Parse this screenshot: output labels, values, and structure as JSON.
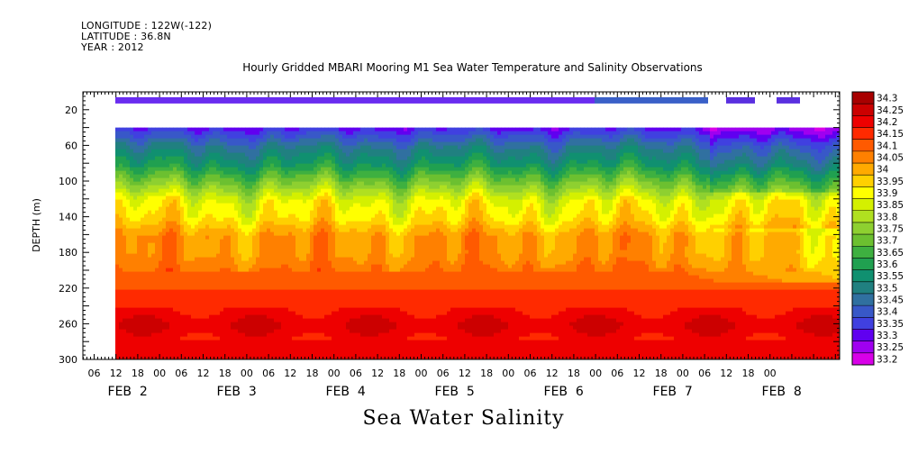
{
  "meta": {
    "longitude": "LONGITUDE : 122W(-122)",
    "latitude": "LATITUDE : 36.8N",
    "year": "YEAR : 2012"
  },
  "chart_data": {
    "type": "heatmap",
    "title": "Hourly Gridded MBARI Mooring M1 Sea Water Temperature and Salinity Observations",
    "footer_title": "Sea Water Salinity",
    "ylabel": "DEPTH (m)",
    "ylim": [
      300,
      0
    ],
    "y_ticks": [
      20,
      60,
      100,
      140,
      180,
      220,
      260,
      300
    ],
    "x_hour_ticks": [
      "06",
      "12",
      "18",
      "00",
      "06",
      "12",
      "18",
      "00",
      "06",
      "12",
      "18",
      "00",
      "06",
      "12",
      "18",
      "00",
      "06",
      "12",
      "18",
      "00",
      "06",
      "12",
      "18",
      "00",
      "06",
      "12",
      "18",
      "00",
      "06",
      "12",
      "18",
      "00"
    ],
    "x_day_labels": [
      "FEB  2",
      "FEB  3",
      "FEB  4",
      "FEB  5",
      "FEB  6",
      "FEB  7",
      "FEB  8"
    ],
    "colorbar": {
      "levels": [
        "34.3",
        "34.25",
        "34.2",
        "34.15",
        "34.1",
        "34.05",
        "34",
        "33.95",
        "33.9",
        "33.85",
        "33.8",
        "33.75",
        "33.7",
        "33.65",
        "33.6",
        "33.55",
        "33.5",
        "33.45",
        "33.4",
        "33.35",
        "33.3",
        "33.25",
        "33.2"
      ],
      "colors": [
        "#a80000",
        "#cc0000",
        "#ee0000",
        "#ff2a00",
        "#ff5a00",
        "#ff8000",
        "#ffaa00",
        "#ffd000",
        "#ffff00",
        "#d4f000",
        "#b0e020",
        "#8ed030",
        "#6cc030",
        "#3eb040",
        "#20a050",
        "#109070",
        "#208080",
        "#3070a0",
        "#3858c8",
        "#4040e0",
        "#6000f0",
        "#a000f0",
        "#d800e8"
      ]
    },
    "depth_profile_typical": [
      {
        "depth": 40,
        "salinity": 33.35
      },
      {
        "depth": 60,
        "salinity": 33.5
      },
      {
        "depth": 80,
        "salinity": 33.6
      },
      {
        "depth": 100,
        "salinity": 33.75
      },
      {
        "depth": 120,
        "salinity": 33.9
      },
      {
        "depth": 140,
        "salinity": 33.95
      },
      {
        "depth": 160,
        "salinity": 34.05
      },
      {
        "depth": 180,
        "salinity": 34.05
      },
      {
        "depth": 200,
        "salinity": 34.1
      },
      {
        "depth": 220,
        "salinity": 34.15
      },
      {
        "depth": 240,
        "salinity": 34.2
      },
      {
        "depth": 260,
        "salinity": 34.25
      },
      {
        "depth": 280,
        "salinity": 34.2
      },
      {
        "depth": 300,
        "salinity": 34.2
      }
    ],
    "grid": false
  }
}
